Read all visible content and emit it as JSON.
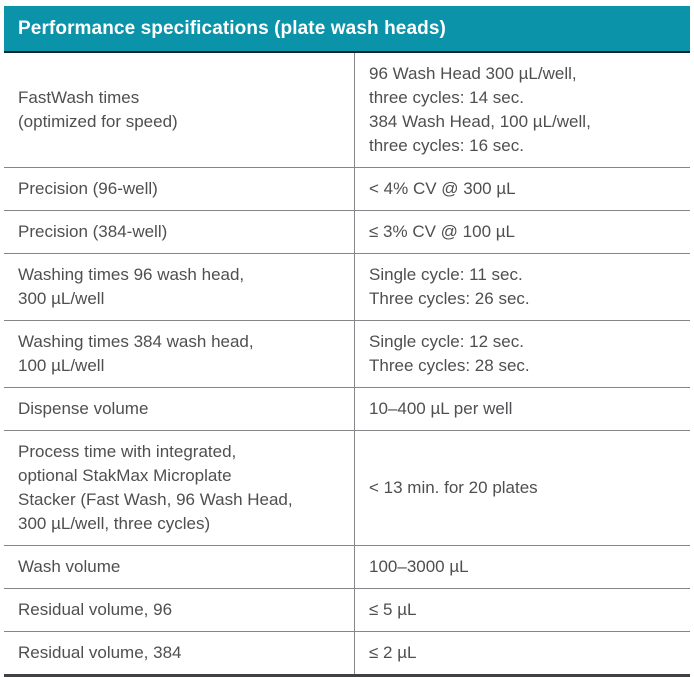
{
  "table": {
    "title": "Performance specifications (plate wash heads)",
    "rows": [
      {
        "label": "FastWash times\n(optimized for speed)",
        "value": "96 Wash Head 300 µL/well,\nthree cycles: 14 sec.\n384 Wash Head, 100 µL/well,\nthree cycles: 16 sec."
      },
      {
        "label": "Precision (96-well)",
        "value": "< 4% CV @ 300 µL"
      },
      {
        "label": "Precision (384-well)",
        "value": "≤ 3% CV @ 100 µL"
      },
      {
        "label": "Washing times 96 wash head,\n300 µL/well",
        "value": "Single cycle: 11 sec.\nThree cycles: 26 sec."
      },
      {
        "label": "Washing times 384 wash head,\n100 µL/well",
        "value": "Single cycle: 12 sec.\nThree cycles: 28 sec."
      },
      {
        "label": "Dispense volume",
        "value": "10–400 µL per well"
      },
      {
        "label": "Process time with integrated,\noptional StakMax Microplate\nStacker (Fast Wash, 96 Wash Head,\n300 µL/well, three cycles)",
        "value": "< 13 min. for 20 plates"
      },
      {
        "label": "Wash volume",
        "value": "100–3000 µL"
      },
      {
        "label": "Residual volume, 96",
        "value": "≤ 5 µL"
      },
      {
        "label": "Residual volume, 384",
        "value": "≤ 2 µL"
      }
    ]
  },
  "colors": {
    "header_bg": "#0a93a9",
    "header_text": "#ffffff",
    "header_underline": "#13262e",
    "row_border": "#86868a",
    "bottom_border": "#414144",
    "body_text": "#4f4f52"
  }
}
